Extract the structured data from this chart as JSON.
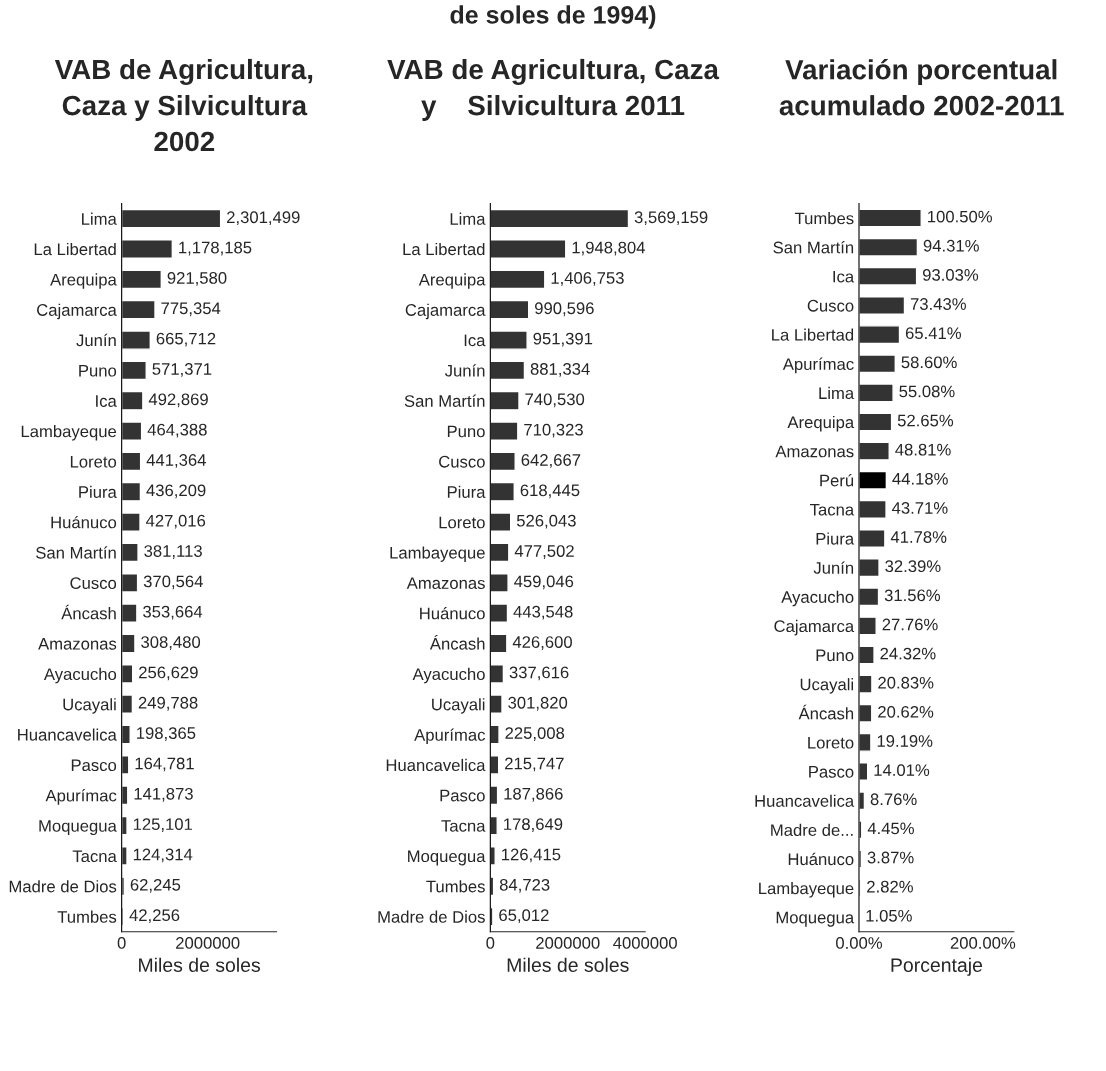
{
  "chart_data": [
    {
      "type": "bar",
      "orientation": "horizontal",
      "title": "VAB de Agricultura,\nCaza y Silvicultura\n2002",
      "xlabel": "Miles de soles",
      "annotations": [
        "de soles de 1994)"
      ],
      "categories": [
        "Lima",
        "La Libertad",
        "Arequipa",
        "Cajamarca",
        "Junín",
        "Puno",
        "Ica",
        "Lambayeque",
        "Loreto",
        "Piura",
        "Huánuco",
        "San Martín",
        "Cusco",
        "Áncash",
        "Amazonas",
        "Ayacucho",
        "Ucayali",
        "Huancavelica",
        "Pasco",
        "Apurímac",
        "Moquegua",
        "Tacna",
        "Madre de Dios",
        "Tumbes"
      ],
      "values": [
        2301499,
        1178185,
        921580,
        775354,
        665712,
        571371,
        492869,
        464388,
        441364,
        436209,
        427016,
        381113,
        370564,
        353664,
        308480,
        256629,
        249788,
        198365,
        164781,
        141873,
        125101,
        124314,
        62245,
        42256
      ],
      "value_labels": [
        "2,301,499",
        "1,178,185",
        "921,580",
        "775,354",
        "665,712",
        "571,371",
        "492,869",
        "464,388",
        "441,364",
        "436,209",
        "427,016",
        "381,113",
        "370,564",
        "353,664",
        "308,480",
        "256,629",
        "249,788",
        "198,365",
        "164,781",
        "141,873",
        "125,101",
        "124,314",
        "62,245",
        "42,256"
      ],
      "color": "#333333",
      "xlim": [
        0,
        3600000
      ],
      "xticks": [
        0,
        2000000
      ],
      "grid": false,
      "legend": false
    },
    {
      "type": "bar",
      "orientation": "horizontal",
      "title": "VAB de Agricultura, Caza\ny    Silvicultura 2011",
      "xlabel": "Miles de soles",
      "categories": [
        "Lima",
        "La Libertad",
        "Arequipa",
        "Cajamarca",
        "Ica",
        "Junín",
        "San Martín",
        "Puno",
        "Cusco",
        "Piura",
        "Loreto",
        "Lambayeque",
        "Amazonas",
        "Huánuco",
        "Áncash",
        "Ayacucho",
        "Ucayali",
        "Apurímac",
        "Huancavelica",
        "Pasco",
        "Tacna",
        "Moquegua",
        "Tumbes",
        "Madre de Dios"
      ],
      "values": [
        3569159,
        1948804,
        1406753,
        990596,
        951391,
        881334,
        740530,
        710323,
        642667,
        618445,
        526043,
        477502,
        459046,
        443548,
        426600,
        337616,
        301820,
        225008,
        215747,
        187866,
        178649,
        126415,
        84723,
        65012
      ],
      "value_labels": [
        "3,569,159",
        "1,948,804",
        "1,406,753",
        "990,596",
        "951,391",
        "881,334",
        "740,530",
        "710,323",
        "642,667",
        "618,445",
        "526,043",
        "477,502",
        "459,046",
        "443,548",
        "426,600",
        "337,616",
        "301,820",
        "225,008",
        "215,747",
        "187,866",
        "178,649",
        "126,415",
        "84,723",
        "65,012"
      ],
      "color": "#333333",
      "xlim": [
        0,
        4000000
      ],
      "xticks": [
        0,
        2000000,
        4000000
      ],
      "grid": false,
      "legend": false
    },
    {
      "type": "bar",
      "orientation": "horizontal",
      "title": "Variación porcentual\nacumulado 2002-2011",
      "xlabel": "Porcentaje",
      "categories": [
        "Tumbes",
        "San Martín",
        "Ica",
        "Cusco",
        "La Libertad",
        "Apurímac",
        "Lima",
        "Arequipa",
        "Amazonas",
        "Perú",
        "Tacna",
        "Piura",
        "Junín",
        "Ayacucho",
        "Cajamarca",
        "Puno",
        "Ucayali",
        "Áncash",
        "Loreto",
        "Pasco",
        "Huancavelica",
        "Madre de...",
        "Huánuco",
        "Lambayeque",
        "Moquegua"
      ],
      "values": [
        100.5,
        94.31,
        93.03,
        73.43,
        65.41,
        58.6,
        55.08,
        52.65,
        48.81,
        44.18,
        43.71,
        41.78,
        32.39,
        31.56,
        27.76,
        24.32,
        20.83,
        20.62,
        19.19,
        14.01,
        8.76,
        4.45,
        3.87,
        2.82,
        1.05
      ],
      "value_labels": [
        "100.50%",
        "94.31%",
        "93.03%",
        "73.43%",
        "65.41%",
        "58.60%",
        "55.08%",
        "52.65%",
        "48.81%",
        "44.18%",
        "43.71%",
        "41.78%",
        "32.39%",
        "31.56%",
        "27.76%",
        "24.32%",
        "20.83%",
        "20.62%",
        "19.19%",
        "14.01%",
        "8.76%",
        "4.45%",
        "3.87%",
        "2.82%",
        "1.05%"
      ],
      "colors": [
        "#333333",
        "#333333",
        "#333333",
        "#333333",
        "#333333",
        "#333333",
        "#333333",
        "#333333",
        "#333333",
        "#000000",
        "#333333",
        "#333333",
        "#333333",
        "#333333",
        "#333333",
        "#333333",
        "#333333",
        "#333333",
        "#333333",
        "#333333",
        "#333333",
        "#333333",
        "#333333",
        "#333333",
        "#333333"
      ],
      "xlim": [
        0,
        250
      ],
      "xticks": [
        {
          "value": 0,
          "label": "0.00%"
        },
        {
          "value": 200,
          "label": "200.00%"
        }
      ],
      "grid": false,
      "legend": false
    }
  ]
}
